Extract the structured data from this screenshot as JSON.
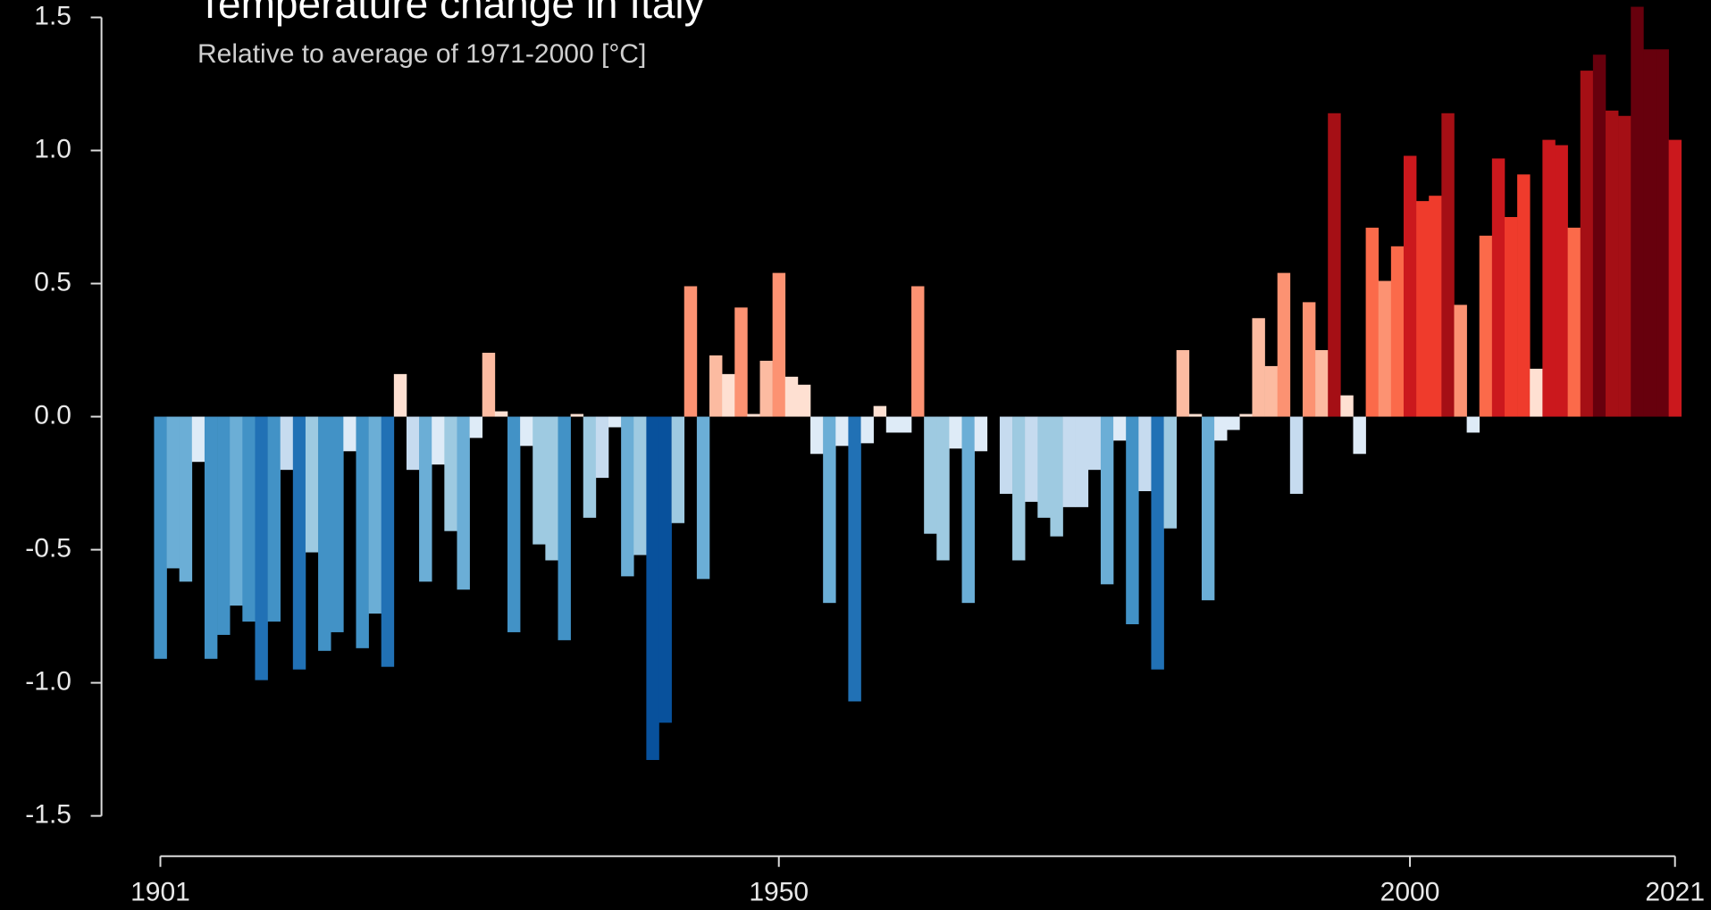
{
  "chart_data": {
    "type": "bar",
    "title": "Temperature change in Italy",
    "subtitle": "Relative to average of 1971-2000  [°C]",
    "x": [
      1901,
      1902,
      1903,
      1904,
      1905,
      1906,
      1907,
      1908,
      1909,
      1910,
      1911,
      1912,
      1913,
      1914,
      1915,
      1916,
      1917,
      1918,
      1919,
      1920,
      1921,
      1922,
      1923,
      1924,
      1925,
      1926,
      1927,
      1928,
      1929,
      1930,
      1931,
      1932,
      1933,
      1934,
      1935,
      1936,
      1937,
      1938,
      1939,
      1940,
      1941,
      1942,
      1943,
      1944,
      1945,
      1946,
      1947,
      1948,
      1949,
      1950,
      1951,
      1952,
      1953,
      1954,
      1955,
      1956,
      1957,
      1958,
      1959,
      1960,
      1961,
      1962,
      1963,
      1964,
      1965,
      1966,
      1967,
      1968,
      1969,
      1970,
      1971,
      1972,
      1973,
      1974,
      1975,
      1976,
      1977,
      1978,
      1979,
      1980,
      1981,
      1982,
      1983,
      1984,
      1985,
      1986,
      1987,
      1988,
      1989,
      1990,
      1991,
      1992,
      1993,
      1994,
      1995,
      1996,
      1997,
      1998,
      1999,
      2000,
      2001,
      2002,
      2003,
      2004,
      2005,
      2006,
      2007,
      2008,
      2009,
      2010,
      2011,
      2012,
      2013,
      2014,
      2015,
      2016,
      2017,
      2018,
      2019,
      2020,
      2021
    ],
    "values": [
      -0.91,
      -0.57,
      -0.62,
      -0.17,
      -0.91,
      -0.82,
      -0.71,
      -0.77,
      -0.99,
      -0.77,
      -0.2,
      -0.95,
      -0.51,
      -0.88,
      -0.81,
      -0.13,
      -0.87,
      -0.74,
      -0.94,
      0.16,
      -0.2,
      -0.62,
      -0.18,
      -0.43,
      -0.65,
      -0.08,
      0.24,
      0.02,
      -0.81,
      -0.11,
      -0.48,
      -0.54,
      -0.84,
      0.01,
      -0.38,
      -0.23,
      -0.04,
      -0.6,
      -0.52,
      -1.29,
      -1.15,
      -0.4,
      0.49,
      -0.61,
      0.23,
      0.16,
      0.41,
      0.01,
      0.21,
      0.54,
      0.15,
      0.12,
      -0.14,
      -0.7,
      -0.11,
      -1.07,
      -0.1,
      0.04,
      -0.06,
      -0.06,
      0.49,
      -0.44,
      -0.54,
      -0.12,
      -0.7,
      -0.13,
      0.0,
      -0.29,
      -0.54,
      -0.32,
      -0.38,
      -0.45,
      -0.34,
      -0.34,
      -0.2,
      -0.63,
      -0.09,
      -0.78,
      -0.28,
      -0.95,
      -0.42,
      0.25,
      0.01,
      -0.69,
      -0.09,
      -0.05,
      0.01,
      0.37,
      0.19,
      0.54,
      -0.29,
      0.43,
      0.25,
      1.14,
      0.08,
      -0.14,
      0.71,
      0.51,
      0.64,
      0.98,
      0.81,
      0.83,
      1.14,
      0.42,
      -0.06,
      0.68,
      0.97,
      0.75,
      0.91,
      0.18,
      1.04,
      1.02,
      0.71,
      1.3,
      1.36,
      1.15,
      1.13,
      1.54,
      1.38,
      1.38,
      1.04
    ],
    "palette": [
      "#08306b",
      "#08519c",
      "#2171b5",
      "#4292c6",
      "#6baed6",
      "#9ecae1",
      "#c6dbef",
      "#deebf7",
      "#fee0d2",
      "#fcbba1",
      "#fc9272",
      "#fb6a4a",
      "#ef3b2c",
      "#cb181d",
      "#a50f15",
      "#67000d"
    ],
    "xlim": [
      1901,
      2021
    ],
    "xticks": [
      1901,
      1950,
      2000,
      2021
    ],
    "ylim": [
      -1.5,
      1.5
    ],
    "yticks": [
      -1.5,
      {
        "value": -1.0,
        "label": "-1.0"
      },
      -0.5,
      {
        "value": 0.0,
        "label": "0.0"
      },
      0.5,
      {
        "value": 1.0,
        "label": "1.0"
      },
      1.5
    ]
  }
}
